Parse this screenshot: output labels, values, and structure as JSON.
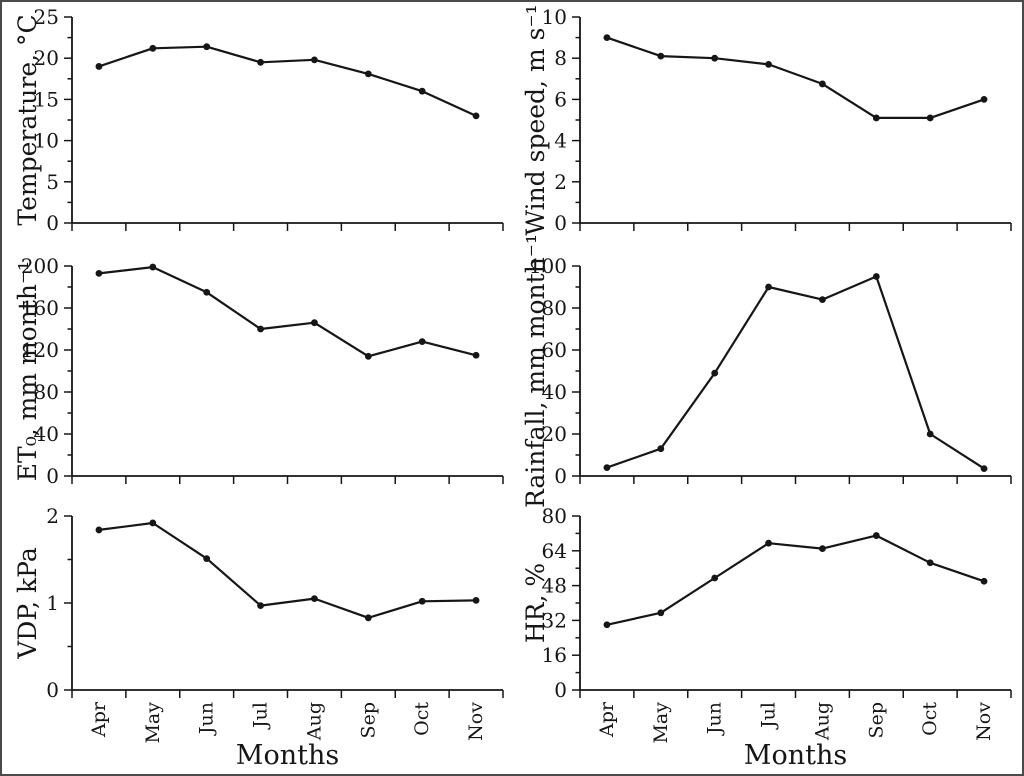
{
  "figure": {
    "description": "Six-panel monthly climate charts",
    "background_color": "#ffffff",
    "frame_border_color": "#4a4a4a",
    "line_color": "#161616",
    "grid": "off",
    "legend": "none"
  },
  "categories": [
    "Apr",
    "May",
    "Jun",
    "Jul",
    "Aug",
    "Sep",
    "Oct",
    "Nov"
  ],
  "chart_data": [
    {
      "id": "temperature",
      "type": "line",
      "title": "",
      "ylabel": "Temperature, °C",
      "xlabel": "",
      "ylim": [
        0,
        25
      ],
      "yticks": [
        0,
        5,
        10,
        15,
        20,
        25
      ],
      "minor_tick_step": 2.5,
      "x_tick_labels_visible": false,
      "values": [
        19,
        21.2,
        21.4,
        19.5,
        19.8,
        18.1,
        16,
        13
      ]
    },
    {
      "id": "wind-speed",
      "type": "line",
      "title": "",
      "ylabel": "Wind speed, m s⁻¹",
      "xlabel": "",
      "ylim": [
        0,
        10
      ],
      "yticks": [
        0,
        2,
        4,
        6,
        8,
        10
      ],
      "minor_tick_step": 1,
      "x_tick_labels_visible": false,
      "values": [
        9,
        8.1,
        8,
        7.7,
        6.75,
        5.1,
        5.1,
        6
      ]
    },
    {
      "id": "et0",
      "type": "line",
      "title": "",
      "ylabel": "ET₀, mm month⁻¹",
      "xlabel": "",
      "ylim": [
        0,
        200
      ],
      "yticks": [
        0,
        40,
        80,
        120,
        160,
        200
      ],
      "minor_tick_step": 20,
      "x_tick_labels_visible": false,
      "values": [
        193,
        199,
        175,
        140,
        146,
        114,
        128,
        115
      ]
    },
    {
      "id": "rainfall",
      "type": "line",
      "title": "",
      "ylabel": "Rainfall, mm month⁻¹",
      "xlabel": "",
      "ylim": [
        0,
        100
      ],
      "yticks": [
        0,
        20,
        40,
        60,
        80,
        100
      ],
      "minor_tick_step": 10,
      "x_tick_labels_visible": false,
      "values": [
        4,
        13,
        49,
        90,
        84,
        95,
        20,
        3.5
      ]
    },
    {
      "id": "vdp",
      "type": "line",
      "title": "",
      "ylabel": "VDP, kPa",
      "xlabel": "Months",
      "ylim": [
        0,
        2
      ],
      "yticks": [
        0,
        1,
        2
      ],
      "minor_tick_step": 0.5,
      "x_tick_labels_visible": true,
      "values": [
        1.84,
        1.92,
        1.51,
        0.97,
        1.05,
        0.83,
        1.02,
        1.03
      ]
    },
    {
      "id": "hr",
      "type": "line",
      "title": "",
      "ylabel": "HR, %",
      "xlabel": "Months",
      "ylim": [
        0,
        80
      ],
      "yticks": [
        0,
        16,
        32,
        48,
        64,
        80
      ],
      "minor_tick_step": 8,
      "x_tick_labels_visible": true,
      "values": [
        30,
        35.5,
        51.5,
        67.5,
        65,
        71,
        58.5,
        50
      ]
    }
  ]
}
